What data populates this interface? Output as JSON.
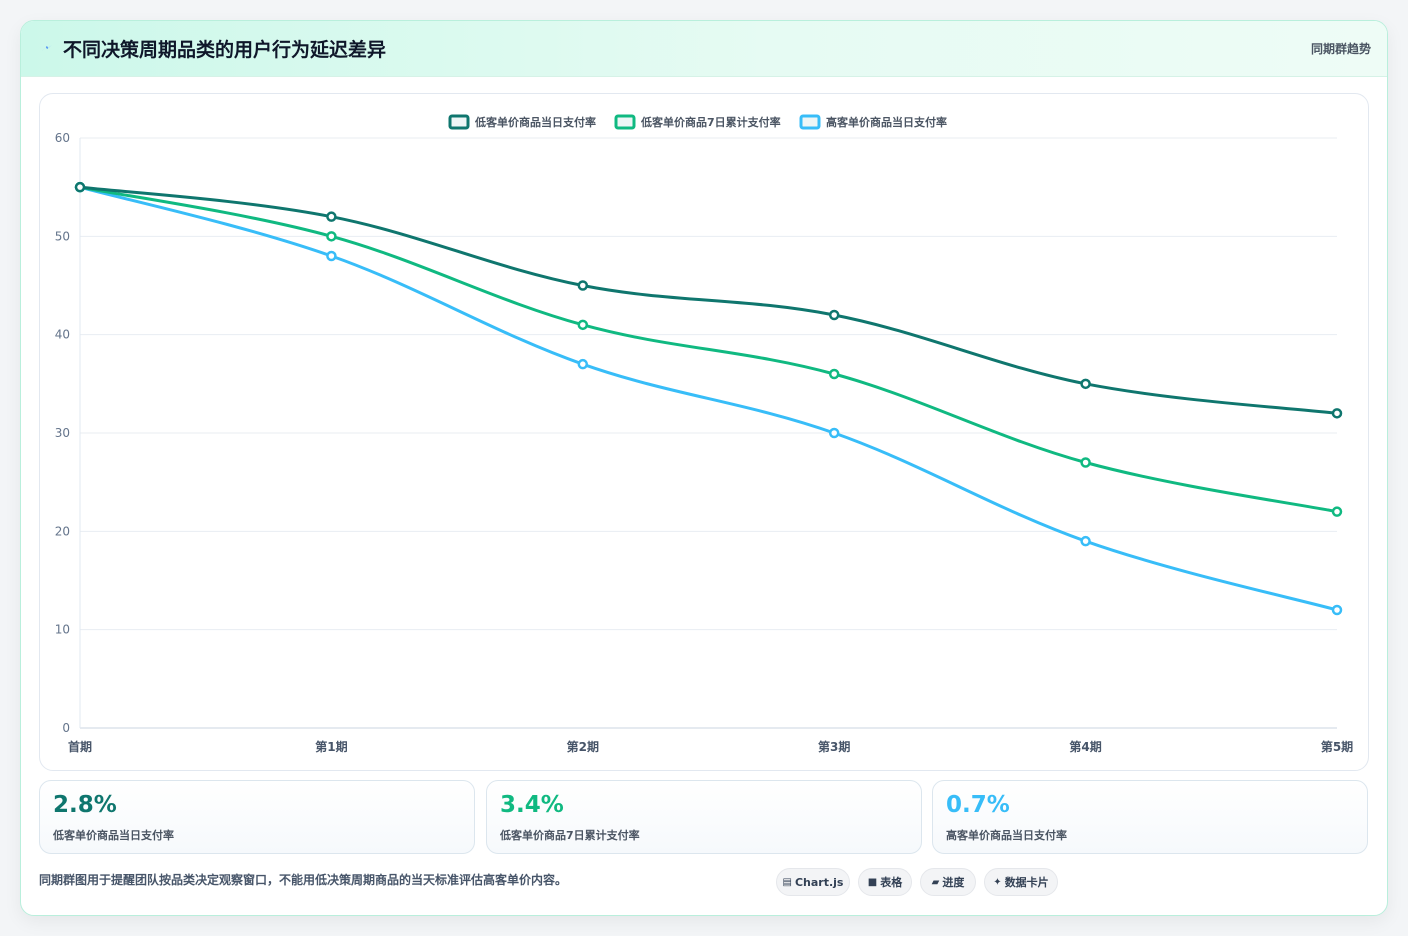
{
  "header": {
    "title": "不同决策周期品类的用户行为延迟差异",
    "title_icon": "lightning-icon",
    "tag": "同期群趋势"
  },
  "chart_data": {
    "type": "line",
    "categories": [
      "首期",
      "第1期",
      "第2期",
      "第3期",
      "第4期",
      "第5期"
    ],
    "series": [
      {
        "name": "低客单价商品当日支付率",
        "color": "#0f766e",
        "values": [
          55,
          52,
          45,
          42,
          35,
          32
        ]
      },
      {
        "name": "低客单价商品7日累计支付率",
        "color": "#10b981",
        "values": [
          55,
          50,
          41,
          36,
          27,
          22
        ]
      },
      {
        "name": "高客单价商品当日支付率",
        "color": "#38bdf8",
        "values": [
          55,
          48,
          37,
          30,
          19,
          12
        ]
      }
    ],
    "ylim": [
      0,
      60
    ],
    "yticks": [
      0,
      10,
      20,
      30,
      40,
      50,
      60
    ],
    "grid": true,
    "legend": "top-center"
  },
  "stats": [
    {
      "value": "2.8%",
      "label": "低客单价商品当日支付率",
      "color": "#0f766e"
    },
    {
      "value": "3.4%",
      "label": "低客单价商品7日累计支付率",
      "color": "#10b981"
    },
    {
      "value": "0.7%",
      "label": "高客单价商品当日支付率",
      "color": "#38bdf8"
    }
  ],
  "footnote": "同期群图用于提醒团队按品类决定观察窗口，不能用低决策周期商品的当天标准评估高客单价内容。",
  "pills": [
    {
      "icon": "chart-icon",
      "glyph": "▤",
      "label": "Chart.js"
    },
    {
      "icon": "table-icon",
      "glyph": "■",
      "label": "表格"
    },
    {
      "icon": "progress-icon",
      "glyph": "▰",
      "label": "进度"
    },
    {
      "icon": "data-card-icon",
      "glyph": "✦",
      "label": "数据卡片"
    }
  ]
}
